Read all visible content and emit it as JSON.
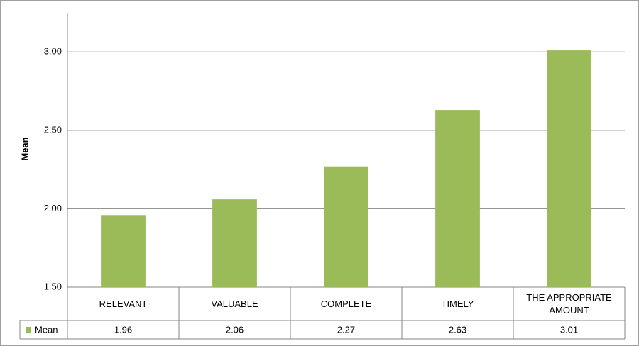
{
  "chart_data": {
    "type": "bar",
    "ylabel": "Mean",
    "categories": [
      "RELEVANT",
      "VALUABLE",
      "COMPLETE",
      "TIMELY",
      "THE APPROPRIATE AMOUNT"
    ],
    "series": [
      {
        "name": "Mean",
        "color": "#9bbb59",
        "values": [
          1.96,
          2.06,
          2.27,
          2.63,
          3.01
        ]
      }
    ],
    "ylim": [
      1.5,
      3.25
    ],
    "yticks": [
      {
        "value": 1.5,
        "label": "1.50"
      },
      {
        "value": 2,
        "label": "2.00"
      },
      {
        "value": 2.5,
        "label": "2.50"
      },
      {
        "value": 3,
        "label": "3.00"
      }
    ],
    "grid": true
  }
}
